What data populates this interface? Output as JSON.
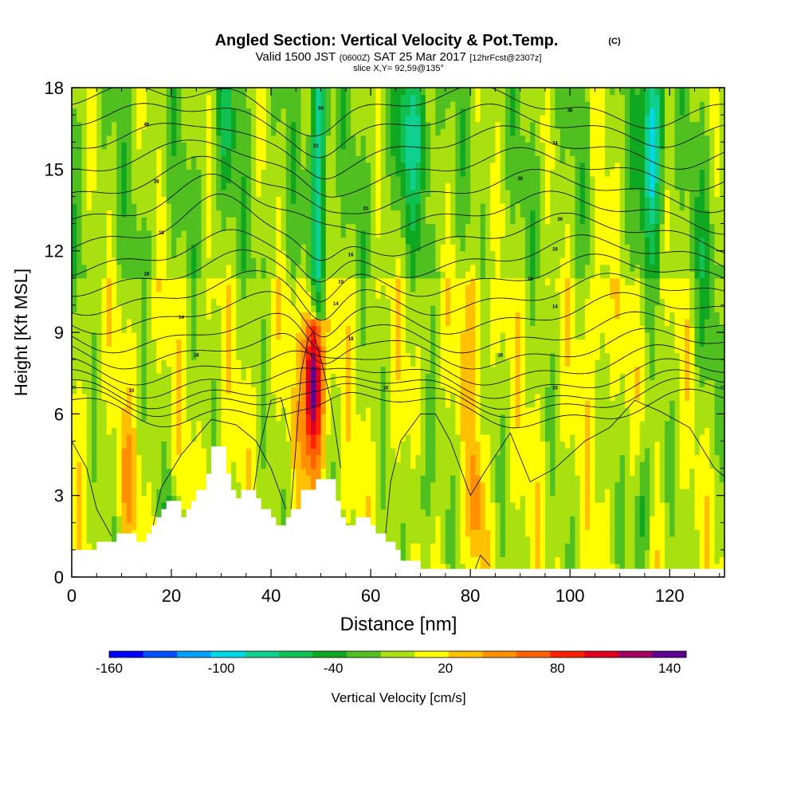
{
  "header": {
    "title": "Angled Section: Vertical Velocity & Pot.Temp.",
    "copyright": "(C)",
    "valid_prefix": "Valid 1500 JST",
    "utc": "(0600Z)",
    "valid_date": "SAT 25 Mar 2017",
    "forecast": "[12hrFcst@2307z]",
    "slice": "slice X,Y= 92,59@135°"
  },
  "chart_data": {
    "type": "heatmap",
    "title": "Angled Section: Vertical Velocity & Pot.Temp.",
    "xlabel": "Distance [nm]",
    "ylabel": "Height [Kft MSL]",
    "xlim": [
      0,
      131
    ],
    "ylim": [
      0,
      18
    ],
    "x_ticks": [
      0,
      20,
      40,
      60,
      80,
      100,
      120
    ],
    "y_ticks": [
      0,
      3,
      6,
      9,
      12,
      15,
      18
    ],
    "colorbar": {
      "label": "Vertical Velocity [cm/s]",
      "ticks": [
        -160,
        -100,
        -40,
        20,
        80,
        140
      ],
      "min": -160,
      "max": 160,
      "colors": [
        "#0000ff",
        "#0050ff",
        "#00a0ff",
        "#00d8e8",
        "#10d090",
        "#10c050",
        "#10a820",
        "#50c020",
        "#a8e010",
        "#ffff00",
        "#ffc000",
        "#ff9000",
        "#ff6000",
        "#ff2000",
        "#e00020",
        "#a00060",
        "#600090"
      ]
    },
    "terrain": [
      [
        0,
        1
      ],
      [
        5,
        1
      ],
      [
        5,
        1.3
      ],
      [
        9,
        1.3
      ],
      [
        9,
        1.6
      ],
      [
        13,
        1.6
      ],
      [
        13,
        1.3
      ],
      [
        15,
        1.3
      ],
      [
        15,
        1.6
      ],
      [
        16,
        1.6
      ],
      [
        16,
        1.9
      ],
      [
        17,
        1.9
      ],
      [
        17,
        2.2
      ],
      [
        18,
        2.2
      ],
      [
        18,
        2.5
      ],
      [
        19,
        2.5
      ],
      [
        19,
        2.8
      ],
      [
        22,
        2.8
      ],
      [
        22,
        2.2
      ],
      [
        23,
        2.2
      ],
      [
        23,
        2.5
      ],
      [
        24,
        2.5
      ],
      [
        24,
        2.8
      ],
      [
        25,
        2.8
      ],
      [
        25,
        3.2
      ],
      [
        27,
        3.2
      ],
      [
        27,
        3.8
      ],
      [
        28,
        3.8
      ],
      [
        28,
        4.8
      ],
      [
        31,
        4.8
      ],
      [
        31,
        3.8
      ],
      [
        32,
        3.8
      ],
      [
        32,
        3.2
      ],
      [
        33,
        3.2
      ],
      [
        33,
        2.9
      ],
      [
        34,
        2.9
      ],
      [
        34,
        3.2
      ],
      [
        37,
        3.2
      ],
      [
        37,
        2.9
      ],
      [
        38,
        2.9
      ],
      [
        38,
        2.5
      ],
      [
        40,
        2.5
      ],
      [
        40,
        2.2
      ],
      [
        41,
        2.2
      ],
      [
        41,
        1.9
      ],
      [
        43,
        1.9
      ],
      [
        43,
        2.2
      ],
      [
        44,
        2.2
      ],
      [
        44,
        2.5
      ],
      [
        46,
        2.5
      ],
      [
        46,
        3.2
      ],
      [
        49,
        3.2
      ],
      [
        49,
        3.6
      ],
      [
        53,
        3.6
      ],
      [
        53,
        2.8
      ],
      [
        54,
        2.8
      ],
      [
        54,
        2.2
      ],
      [
        55,
        2.2
      ],
      [
        55,
        1.9
      ],
      [
        57,
        1.9
      ],
      [
        57,
        2.2
      ],
      [
        60,
        2.2
      ],
      [
        60,
        1.9
      ],
      [
        61,
        1.9
      ],
      [
        61,
        1.6
      ],
      [
        63,
        1.6
      ],
      [
        63,
        1.3
      ],
      [
        65,
        1.3
      ],
      [
        65,
        1
      ],
      [
        66,
        1
      ],
      [
        66,
        0.6
      ],
      [
        70,
        0.6
      ],
      [
        70,
        0.3
      ],
      [
        131,
        0.3
      ]
    ],
    "isentrope_labels": [
      {
        "x": 15,
        "y": 16.6,
        "text": "46"
      },
      {
        "x": 17,
        "y": 14.5,
        "text": "38"
      },
      {
        "x": 18,
        "y": 12.6,
        "text": "18"
      },
      {
        "x": 15,
        "y": 11.1,
        "text": "18"
      },
      {
        "x": 22,
        "y": 9.5,
        "text": "14"
      },
      {
        "x": 25,
        "y": 8.1,
        "text": "18"
      },
      {
        "x": 12,
        "y": 6.8,
        "text": "10"
      },
      {
        "x": 50,
        "y": 17.2,
        "text": "54"
      },
      {
        "x": 49,
        "y": 15.8,
        "text": "22"
      },
      {
        "x": 59,
        "y": 13.5,
        "text": "20"
      },
      {
        "x": 56,
        "y": 11.8,
        "text": "16"
      },
      {
        "x": 54,
        "y": 10.8,
        "text": "10"
      },
      {
        "x": 53,
        "y": 10,
        "text": "14"
      },
      {
        "x": 56,
        "y": 8.7,
        "text": "18"
      },
      {
        "x": 63,
        "y": 6.9,
        "text": "10"
      },
      {
        "x": 100,
        "y": 17.1,
        "text": "36"
      },
      {
        "x": 97,
        "y": 15.9,
        "text": "34"
      },
      {
        "x": 90,
        "y": 14.6,
        "text": "30"
      },
      {
        "x": 98,
        "y": 13.1,
        "text": "30"
      },
      {
        "x": 97,
        "y": 12,
        "text": "16"
      },
      {
        "x": 92,
        "y": 10.9,
        "text": "10"
      },
      {
        "x": 97,
        "y": 9.9,
        "text": "14"
      },
      {
        "x": 86,
        "y": 8.1,
        "text": "18"
      },
      {
        "x": 97,
        "y": 6.9,
        "text": "10"
      }
    ]
  }
}
